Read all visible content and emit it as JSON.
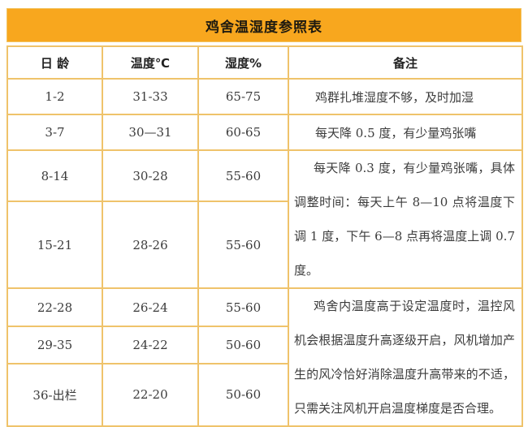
{
  "title": "鸡舍温湿度参照表",
  "colors": {
    "header_bg": "#F8A71E",
    "table_border": "#EFC36B",
    "text": "#3C3C3C"
  },
  "table": {
    "columns": {
      "age": "日 龄",
      "temp": "温度℃",
      "humidity": "湿度%",
      "remark": "备注"
    },
    "rows": [
      {
        "age": "1-2",
        "temp": "31-33",
        "humidity": "65-75",
        "remark": "鸡群扎堆湿度不够，及时加湿"
      },
      {
        "age": "3-7",
        "temp": "30—31",
        "humidity": "60-65",
        "remark": "每天降 0.5 度，有少量鸡张嘴"
      },
      {
        "age": "8-14",
        "temp": "30-28",
        "humidity": "55-60",
        "remark": "每天降 0.3 度，有少量鸡张嘴，具体调整时间：每天上午 8—10 点将温度下调 1 度，下午 6—8 点再将温度上调 0.7 度。"
      },
      {
        "age": "15-21",
        "temp": "28-26",
        "humidity": "55-60"
      },
      {
        "age": "22-28",
        "temp": "26-24",
        "humidity": "55-60",
        "remark": "鸡舍内温度高于设定温度时，温控风机会根据温度升高逐级开启，风机增加产生的风冷恰好消除温度升高带来的不适，只需关注风机开启温度梯度是否合理。"
      },
      {
        "age": "29-35",
        "temp": "24-22",
        "humidity": "50-60"
      },
      {
        "age": "36-出栏",
        "temp": "22-20",
        "humidity": "50-60"
      }
    ]
  }
}
